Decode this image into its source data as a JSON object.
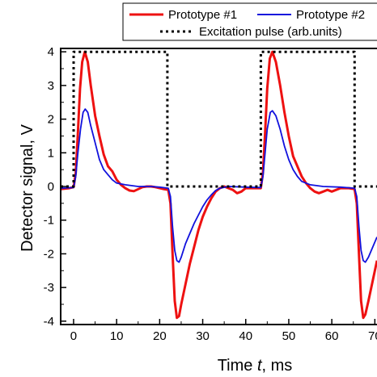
{
  "chart_data": {
    "type": "line",
    "xlabel_prefix": "Time ",
    "xlabel_var": "t",
    "xlabel_suffix": ", ms",
    "ylabel": "Detector signal, V",
    "xlim": [
      -3,
      70.5
    ],
    "ylim": [
      -4.1,
      4.1
    ],
    "x_ticks": [
      0,
      10,
      20,
      30,
      40,
      50,
      60,
      70
    ],
    "y_ticks": [
      4,
      3,
      2,
      1,
      0,
      -1,
      -2,
      -3,
      -4
    ],
    "x_tick_labels": [
      "0",
      "10",
      "20",
      "30",
      "40",
      "50",
      "60",
      "70"
    ],
    "y_tick_labels": [
      "4",
      "3",
      "2",
      "1",
      "0",
      "-1",
      "-2",
      "-3",
      "-4"
    ],
    "legend": {
      "position": "top-right",
      "entries": [
        "Prototype #1",
        "Prototype #2",
        "Excitation pulse (arb.units)"
      ]
    },
    "series": [
      {
        "name": "Prototype #1",
        "color": "#ee1111",
        "style": "solid",
        "points": [
          [
            -3,
            -0.08
          ],
          [
            -1,
            -0.05
          ],
          [
            0,
            -0.02
          ],
          [
            0.5,
            0.4
          ],
          [
            1,
            1.6
          ],
          [
            1.5,
            2.9
          ],
          [
            2,
            3.7
          ],
          [
            2.6,
            4.0
          ],
          [
            3.3,
            3.7
          ],
          [
            4,
            3.0
          ],
          [
            5,
            2.1
          ],
          [
            6,
            1.5
          ],
          [
            7,
            0.95
          ],
          [
            8,
            0.6
          ],
          [
            9,
            0.45
          ],
          [
            10,
            0.2
          ],
          [
            11,
            0.05
          ],
          [
            12,
            -0.05
          ],
          [
            13,
            -0.12
          ],
          [
            14,
            -0.14
          ],
          [
            15,
            -0.08
          ],
          [
            16,
            -0.02
          ],
          [
            17,
            0.0
          ],
          [
            18,
            0.0
          ],
          [
            19,
            -0.02
          ],
          [
            20,
            -0.05
          ],
          [
            21,
            -0.08
          ],
          [
            22,
            -0.1
          ],
          [
            22.5,
            -0.5
          ],
          [
            23,
            -2.0
          ],
          [
            23.5,
            -3.4
          ],
          [
            24,
            -3.9
          ],
          [
            24.5,
            -3.85
          ],
          [
            25,
            -3.5
          ],
          [
            26,
            -2.9
          ],
          [
            27,
            -2.3
          ],
          [
            28,
            -1.8
          ],
          [
            29,
            -1.3
          ],
          [
            30,
            -0.9
          ],
          [
            31,
            -0.6
          ],
          [
            32,
            -0.35
          ],
          [
            33,
            -0.15
          ],
          [
            34,
            -0.05
          ],
          [
            35,
            0.0
          ],
          [
            37,
            -0.1
          ],
          [
            38,
            -0.2
          ],
          [
            39,
            -0.15
          ],
          [
            40,
            -0.05
          ],
          [
            42,
            -0.05
          ],
          [
            43.5,
            -0.05
          ],
          [
            44,
            0.4
          ],
          [
            44.5,
            1.6
          ],
          [
            45,
            2.9
          ],
          [
            45.6,
            3.8
          ],
          [
            46.2,
            4.0
          ],
          [
            47,
            3.7
          ],
          [
            48,
            3.0
          ],
          [
            49,
            2.2
          ],
          [
            50,
            1.5
          ],
          [
            51,
            0.9
          ],
          [
            52,
            0.6
          ],
          [
            53,
            0.3
          ],
          [
            54,
            0.1
          ],
          [
            55,
            -0.05
          ],
          [
            56,
            -0.15
          ],
          [
            57,
            -0.2
          ],
          [
            58,
            -0.15
          ],
          [
            59,
            -0.1
          ],
          [
            60,
            -0.15
          ],
          [
            61,
            -0.1
          ],
          [
            62,
            -0.05
          ],
          [
            64,
            -0.05
          ],
          [
            65.3,
            -0.08
          ],
          [
            65.8,
            -0.5
          ],
          [
            66.3,
            -2.0
          ],
          [
            66.8,
            -3.4
          ],
          [
            67.3,
            -3.9
          ],
          [
            67.8,
            -3.8
          ],
          [
            68.5,
            -3.4
          ],
          [
            69.5,
            -2.8
          ],
          [
            70.5,
            -2.2
          ]
        ]
      },
      {
        "name": "Prototype #2",
        "color": "#1111dd",
        "style": "solid",
        "points": [
          [
            -3,
            -0.05
          ],
          [
            0,
            -0.03
          ],
          [
            0.5,
            0.3
          ],
          [
            1,
            1.0
          ],
          [
            1.6,
            1.7
          ],
          [
            2.2,
            2.2
          ],
          [
            2.7,
            2.3
          ],
          [
            3.3,
            2.2
          ],
          [
            4,
            1.8
          ],
          [
            5,
            1.3
          ],
          [
            6,
            0.8
          ],
          [
            7,
            0.5
          ],
          [
            8,
            0.35
          ],
          [
            9,
            0.2
          ],
          [
            10,
            0.1
          ],
          [
            12,
            0.05
          ],
          [
            15,
            0.0
          ],
          [
            18,
            0.0
          ],
          [
            20,
            -0.02
          ],
          [
            22,
            -0.05
          ],
          [
            22.5,
            -0.3
          ],
          [
            23,
            -1.2
          ],
          [
            23.5,
            -1.9
          ],
          [
            24,
            -2.2
          ],
          [
            24.5,
            -2.25
          ],
          [
            25,
            -2.1
          ],
          [
            26,
            -1.7
          ],
          [
            27,
            -1.4
          ],
          [
            28,
            -1.1
          ],
          [
            29,
            -0.85
          ],
          [
            30,
            -0.6
          ],
          [
            31,
            -0.4
          ],
          [
            32,
            -0.25
          ],
          [
            33,
            -0.12
          ],
          [
            34,
            -0.05
          ],
          [
            36,
            0.0
          ],
          [
            40,
            -0.02
          ],
          [
            43.5,
            -0.03
          ],
          [
            44,
            0.3
          ],
          [
            44.5,
            1.0
          ],
          [
            45,
            1.7
          ],
          [
            45.7,
            2.2
          ],
          [
            46.2,
            2.25
          ],
          [
            47,
            2.1
          ],
          [
            48,
            1.7
          ],
          [
            49,
            1.2
          ],
          [
            50,
            0.8
          ],
          [
            51,
            0.5
          ],
          [
            52,
            0.3
          ],
          [
            53,
            0.15
          ],
          [
            55,
            0.05
          ],
          [
            58,
            0.0
          ],
          [
            62,
            -0.02
          ],
          [
            65.3,
            -0.05
          ],
          [
            65.8,
            -0.3
          ],
          [
            66.3,
            -1.2
          ],
          [
            66.8,
            -1.9
          ],
          [
            67.3,
            -2.2
          ],
          [
            67.8,
            -2.25
          ],
          [
            68.5,
            -2.1
          ],
          [
            69.5,
            -1.8
          ],
          [
            70.5,
            -1.5
          ]
        ]
      },
      {
        "name": "Excitation pulse (arb.units)",
        "color": "#000000",
        "style": "dotted",
        "points": [
          [
            -3,
            0
          ],
          [
            0,
            0
          ],
          [
            0,
            4
          ],
          [
            21.8,
            4
          ],
          [
            21.8,
            0
          ],
          [
            43.5,
            0
          ],
          [
            43.5,
            4
          ],
          [
            65.3,
            4
          ],
          [
            65.3,
            0
          ],
          [
            70.5,
            0
          ]
        ]
      }
    ]
  }
}
